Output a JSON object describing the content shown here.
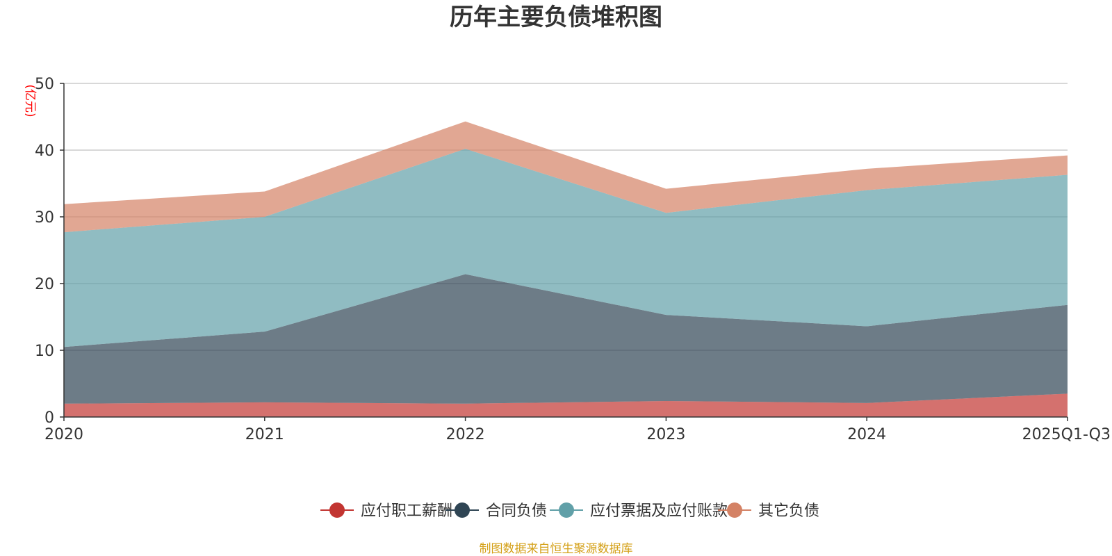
{
  "chart_data": {
    "type": "area",
    "stacked": true,
    "title": "历年主要负债堆积图",
    "unit_label": "(亿元)",
    "categories": [
      "2020",
      "2021",
      "2022",
      "2023",
      "2024",
      "2025Q1-Q3"
    ],
    "ylim": [
      0,
      50
    ],
    "yticks": [
      0,
      10,
      20,
      30,
      40,
      50
    ],
    "grid": true,
    "legend_position": "bottom",
    "series": [
      {
        "name": "应付职工薪酬",
        "values": [
          2.0,
          2.2,
          2.0,
          2.4,
          2.1,
          3.5
        ],
        "color": "#c23531",
        "fill_opacity": 0.7
      },
      {
        "name": "合同负债",
        "values": [
          8.5,
          10.6,
          19.4,
          12.9,
          11.5,
          13.3
        ],
        "color": "#2f4554",
        "fill_opacity": 0.7
      },
      {
        "name": "应付票据及应付账款",
        "values": [
          17.2,
          17.2,
          18.8,
          15.3,
          20.4,
          19.5
        ],
        "color": "#61a0a8",
        "fill_opacity": 0.7
      },
      {
        "name": "其它负债",
        "values": [
          4.2,
          3.8,
          4.1,
          3.6,
          3.2,
          2.9
        ],
        "color": "#d48265",
        "fill_opacity": 0.7
      }
    ],
    "source_note": "制图数据来自恒生聚源数据库"
  }
}
